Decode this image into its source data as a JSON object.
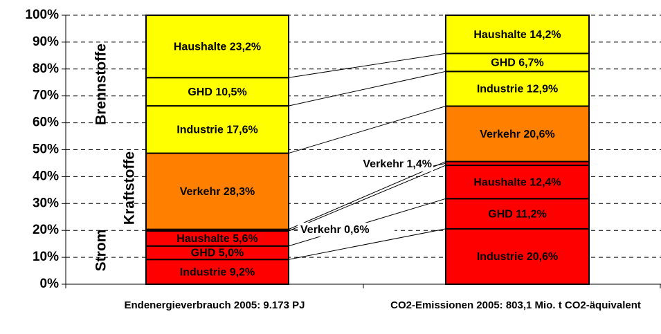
{
  "chart_data": {
    "type": "stacked_bar",
    "categories": [
      "Endenergieverbrauch 2005: 9.173 PJ",
      "CO2-Emissionen 2005: 803,1 Mio. t CO2-äquivalent"
    ],
    "ylim": [
      0,
      100
    ],
    "yticks": [
      {
        "value": 0,
        "label": "0%"
      },
      {
        "value": 10,
        "label": "10%"
      },
      {
        "value": 20,
        "label": "20%"
      },
      {
        "value": 30,
        "label": "30%"
      },
      {
        "value": 40,
        "label": "40%"
      },
      {
        "value": 50,
        "label": "50%"
      },
      {
        "value": 60,
        "label": "60%"
      },
      {
        "value": 70,
        "label": "70%"
      },
      {
        "value": 80,
        "label": "80%"
      },
      {
        "value": 90,
        "label": "90%"
      },
      {
        "value": 100,
        "label": "100%"
      }
    ],
    "grid": true,
    "series": [
      {
        "color": "#ff0000",
        "values": [
          9.2,
          20.6
        ],
        "value_labels": [
          "Industrie 9,2%",
          "Industrie 20,6%"
        ]
      },
      {
        "color": "#ff0000",
        "values": [
          5.0,
          11.2
        ],
        "value_labels": [
          "GHD 5,0%",
          "GHD 11,2%"
        ]
      },
      {
        "color": "#ff0000",
        "values": [
          5.6,
          12.4
        ],
        "value_labels": [
          "Haushalte 5,6%",
          "Haushalte 12,4%"
        ]
      },
      {
        "color": "#ff0000",
        "values": [
          0.6,
          1.4
        ],
        "value_labels": [
          "Verkehr 0,6%",
          "Verkehr 1,4%"
        ]
      },
      {
        "color": "#ff8000",
        "values": [
          28.3,
          20.6
        ],
        "value_labels": [
          "Verkehr 28,3%",
          "Verkehr 20,6%"
        ]
      },
      {
        "color": "#ffff00",
        "values": [
          17.6,
          12.9
        ],
        "value_labels": [
          "Industrie 17,6%",
          "Industrie 12,9%"
        ]
      },
      {
        "color": "#ffff00",
        "values": [
          10.5,
          6.7
        ],
        "value_labels": [
          "GHD 10,5%",
          "GHD 6,7%"
        ]
      },
      {
        "color": "#ffff00",
        "values": [
          23.2,
          14.2
        ],
        "value_labels": [
          "Haushalte 23,2%",
          "Haushalte 14,2%"
        ]
      }
    ],
    "annotations": [
      "Brennstoffe",
      "Kraftstoffe",
      "Strom"
    ]
  }
}
